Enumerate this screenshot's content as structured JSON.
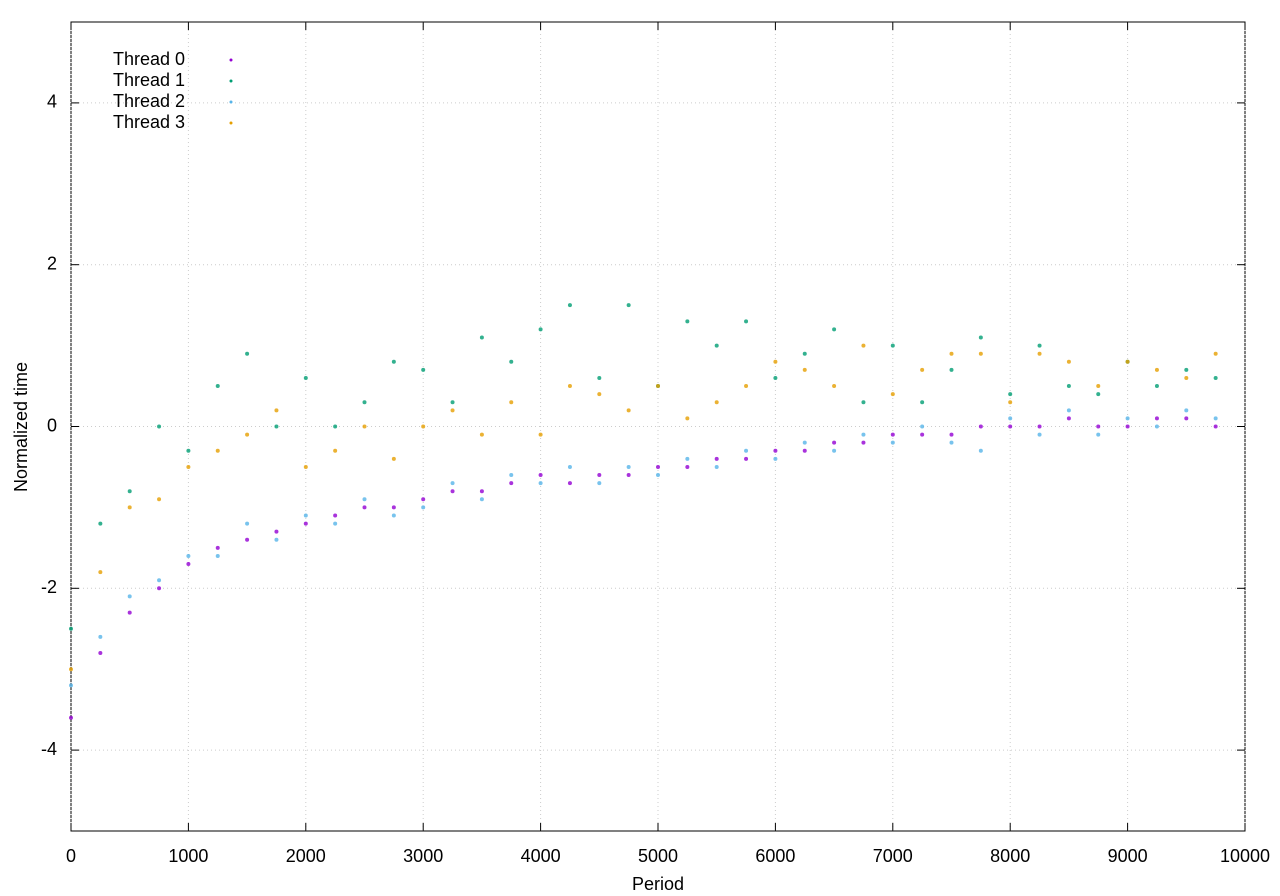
{
  "chart_data": {
    "type": "scatter",
    "x_label": "Period",
    "y_label": "Normalized time",
    "x": [
      0,
      250,
      500,
      750,
      1000,
      1250,
      1500,
      1750,
      2000,
      2250,
      2500,
      2750,
      3000,
      3250,
      3500,
      3750,
      4000,
      4250,
      4500,
      4750,
      5000,
      5250,
      5500,
      5750,
      6000,
      6250,
      6500,
      6750,
      7000,
      7250,
      7500,
      7750,
      8000,
      8250,
      8500,
      8750,
      9000,
      9250,
      9500,
      9750
    ],
    "series": [
      {
        "name": "Thread 0",
        "color": "#9400d3",
        "values": [
          -3.6,
          -2.8,
          -2.3,
          -2.0,
          -1.7,
          -1.5,
          -1.4,
          -1.3,
          -1.2,
          -1.1,
          -1.0,
          -1.0,
          -0.9,
          -0.8,
          -0.8,
          -0.7,
          -0.6,
          -0.7,
          -0.6,
          -0.6,
          -0.5,
          -0.5,
          -0.4,
          -0.4,
          -0.3,
          -0.3,
          -0.2,
          -0.2,
          -0.1,
          -0.1,
          -0.1,
          0.0,
          0.0,
          0.0,
          0.1,
          0.0,
          0.0,
          0.1,
          0.1,
          0.0
        ]
      },
      {
        "name": "Thread 1",
        "color": "#009e73",
        "values": [
          -2.5,
          -1.2,
          -0.8,
          0.0,
          -0.3,
          0.5,
          0.9,
          0.0,
          0.6,
          0.0,
          0.3,
          0.8,
          0.7,
          0.3,
          1.1,
          0.8,
          1.2,
          1.5,
          0.6,
          1.5,
          0.5,
          1.3,
          1.0,
          1.3,
          0.6,
          0.9,
          1.2,
          0.3,
          1.0,
          0.3,
          0.7,
          1.1,
          0.4,
          1.0,
          0.5,
          0.4,
          0.8,
          0.5,
          0.7,
          0.6
        ]
      },
      {
        "name": "Thread 2",
        "color": "#56b4e9",
        "values": [
          -3.2,
          -2.6,
          -2.1,
          -1.9,
          -1.6,
          -1.6,
          -1.2,
          -1.4,
          -1.1,
          -1.2,
          -0.9,
          -1.1,
          -1.0,
          -0.7,
          -0.9,
          -0.6,
          -0.7,
          -0.5,
          -0.7,
          -0.5,
          -0.6,
          -0.4,
          -0.5,
          -0.3,
          -0.4,
          -0.2,
          -0.3,
          -0.1,
          -0.2,
          0.0,
          -0.2,
          -0.3,
          0.1,
          -0.1,
          0.2,
          -0.1,
          0.1,
          0.0,
          0.2,
          0.1
        ]
      },
      {
        "name": "Thread 3",
        "color": "#e69f00",
        "values": [
          -3.0,
          -1.8,
          -1.0,
          -0.9,
          -0.5,
          -0.3,
          -0.1,
          0.2,
          -0.5,
          -0.3,
          0.0,
          -0.4,
          0.0,
          0.2,
          -0.1,
          0.3,
          -0.1,
          0.5,
          0.4,
          0.2,
          0.5,
          0.1,
          0.3,
          0.5,
          0.8,
          0.7,
          0.5,
          1.0,
          0.4,
          0.7,
          0.9,
          0.9,
          0.3,
          0.9,
          0.8,
          0.5,
          0.8,
          0.7,
          0.6,
          0.9
        ]
      }
    ],
    "xlim": [
      0,
      10000
    ],
    "xticks": [
      0,
      1000,
      2000,
      3000,
      4000,
      5000,
      6000,
      7000,
      8000,
      9000,
      10000
    ],
    "ylim": [
      -5,
      5
    ],
    "yticks": [
      -4,
      -2,
      0,
      2,
      4
    ],
    "grid": true,
    "legend": "top-left"
  }
}
